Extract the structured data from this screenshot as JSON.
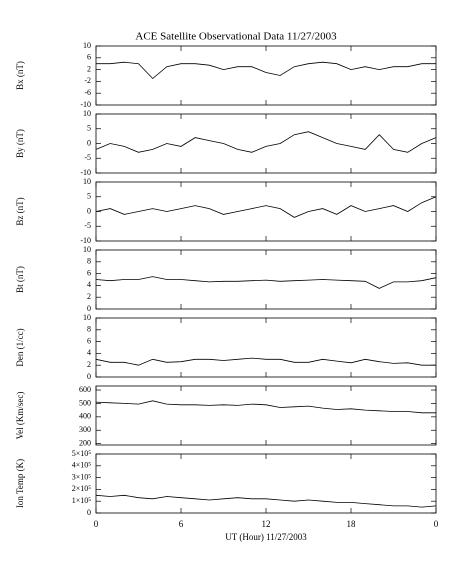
{
  "title": "ACE Satellite Observational Data   11/27/2003",
  "xlabel": "UT (Hour)  11/27/2003",
  "chart_data": [
    {
      "type": "line",
      "ylabel": "Bx (nT)",
      "color": "#000000",
      "x": [
        0,
        1,
        2,
        3,
        4,
        5,
        6,
        7,
        8,
        9,
        10,
        11,
        12,
        13,
        14,
        15,
        16,
        17,
        18,
        19,
        20,
        21,
        22,
        23,
        24
      ],
      "values": [
        4,
        4,
        4.5,
        4,
        -1,
        3,
        4,
        4,
        3.5,
        2,
        3,
        3,
        1,
        0,
        3,
        4,
        4.5,
        4,
        2,
        3,
        2,
        3,
        3,
        4,
        4
      ],
      "xlim": [
        0,
        24
      ],
      "xticks": [
        0,
        6,
        12,
        18,
        {
          "value": 24,
          "label": "0"
        }
      ],
      "ylim": [
        -10,
        10
      ],
      "yticks": [
        10,
        6,
        2,
        -2,
        -6,
        -10
      ]
    },
    {
      "type": "line",
      "ylabel": "By (nT)",
      "color": "#000000",
      "x": [
        0,
        1,
        2,
        3,
        4,
        5,
        6,
        7,
        8,
        9,
        10,
        11,
        12,
        13,
        14,
        15,
        16,
        17,
        18,
        19,
        20,
        21,
        22,
        23,
        24
      ],
      "values": [
        -2,
        0,
        -1,
        -3,
        -2,
        0,
        -1,
        2,
        1,
        0,
        -2,
        -3,
        -1,
        0,
        3,
        4,
        2,
        0,
        -1,
        -2,
        3,
        -2,
        -3,
        0,
        2
      ],
      "xlim": [
        0,
        24
      ],
      "xticks": [
        0,
        6,
        12,
        18,
        {
          "value": 24,
          "label": "0"
        }
      ],
      "ylim": [
        -10,
        10
      ],
      "yticks": [
        10,
        5,
        0,
        -5,
        -10
      ]
    },
    {
      "type": "line",
      "ylabel": "Bz (nT)",
      "color": "#000000",
      "x": [
        0,
        1,
        2,
        3,
        4,
        5,
        6,
        7,
        8,
        9,
        10,
        11,
        12,
        13,
        14,
        15,
        16,
        17,
        18,
        19,
        20,
        21,
        22,
        23,
        24
      ],
      "values": [
        0,
        1,
        -1,
        0,
        1,
        0,
        1,
        2,
        1,
        -1,
        0,
        1,
        2,
        1,
        -2,
        0,
        1,
        -1,
        2,
        0,
        1,
        2,
        0,
        3,
        5
      ],
      "xlim": [
        0,
        24
      ],
      "xticks": [
        0,
        6,
        12,
        18,
        {
          "value": 24,
          "label": "0"
        }
      ],
      "ylim": [
        -10,
        10
      ],
      "yticks": [
        10,
        5,
        0,
        -5,
        -10
      ]
    },
    {
      "type": "line",
      "ylabel": "Bt (nT)",
      "color": "#000000",
      "x": [
        0,
        1,
        2,
        3,
        4,
        5,
        6,
        7,
        8,
        9,
        10,
        11,
        12,
        13,
        14,
        15,
        16,
        17,
        18,
        19,
        20,
        21,
        22,
        23,
        24
      ],
      "values": [
        5,
        4.8,
        5,
        5,
        5.5,
        5,
        5,
        4.8,
        4.6,
        4.7,
        4.7,
        4.8,
        4.9,
        4.7,
        4.8,
        4.9,
        5,
        4.9,
        4.8,
        4.7,
        3.5,
        4.6,
        4.6,
        4.8,
        5.3
      ],
      "xlim": [
        0,
        24
      ],
      "xticks": [
        0,
        6,
        12,
        18,
        {
          "value": 24,
          "label": "0"
        }
      ],
      "ylim": [
        0,
        10
      ],
      "yticks": [
        10,
        8,
        6,
        4,
        2,
        0
      ]
    },
    {
      "type": "line",
      "ylabel": "Den (1/cc)",
      "color": "#000000",
      "x": [
        0,
        1,
        2,
        3,
        4,
        5,
        6,
        7,
        8,
        9,
        10,
        11,
        12,
        13,
        14,
        15,
        16,
        17,
        18,
        19,
        20,
        21,
        22,
        23,
        24
      ],
      "values": [
        3,
        2.5,
        2.5,
        2,
        3,
        2.5,
        2.6,
        3,
        3,
        2.8,
        3,
        3.2,
        3,
        3,
        2.5,
        2.5,
        3,
        2.7,
        2.4,
        3,
        2.6,
        2.3,
        2.4,
        2,
        2
      ],
      "xlim": [
        0,
        24
      ],
      "xticks": [
        0,
        6,
        12,
        18,
        {
          "value": 24,
          "label": "0"
        }
      ],
      "ylim": [
        0,
        10
      ],
      "yticks": [
        10,
        8,
        6,
        4,
        2,
        0
      ]
    },
    {
      "type": "line",
      "ylabel": "Vel (Km/sec)",
      "color": "#000000",
      "x": [
        0,
        1,
        2,
        3,
        4,
        5,
        6,
        7,
        8,
        9,
        10,
        11,
        12,
        13,
        14,
        15,
        16,
        17,
        18,
        19,
        20,
        21,
        22,
        23,
        24
      ],
      "values": [
        510,
        505,
        500,
        495,
        520,
        495,
        490,
        490,
        485,
        490,
        485,
        495,
        490,
        470,
        475,
        480,
        465,
        455,
        460,
        450,
        445,
        440,
        440,
        430,
        430
      ],
      "xlim": [
        0,
        24
      ],
      "xticks": [
        0,
        6,
        12,
        18,
        {
          "value": 24,
          "label": "0"
        }
      ],
      "ylim": [
        190,
        630
      ],
      "yticks": [
        600,
        500,
        400,
        300,
        200
      ]
    },
    {
      "type": "line",
      "ylabel": "Ion Temp (K)",
      "color": "#000000",
      "x": [
        0,
        1,
        2,
        3,
        4,
        5,
        6,
        7,
        8,
        9,
        10,
        11,
        12,
        13,
        14,
        15,
        16,
        17,
        18,
        19,
        20,
        21,
        22,
        23,
        24
      ],
      "values": [
        150000,
        140000,
        150000,
        130000,
        120000,
        140000,
        130000,
        120000,
        110000,
        120000,
        130000,
        120000,
        120000,
        110000,
        100000,
        110000,
        100000,
        90000,
        90000,
        80000,
        70000,
        60000,
        60000,
        50000,
        60000
      ],
      "xlim": [
        0,
        24
      ],
      "xticks": [
        0,
        6,
        12,
        18,
        {
          "value": 24,
          "label": "0"
        }
      ],
      "ylim": [
        0,
        500000
      ],
      "yticks": [
        {
          "value": 500000,
          "label": "5×10⁵"
        },
        {
          "value": 400000,
          "label": "4×10⁵"
        },
        {
          "value": 300000,
          "label": "3×10⁵"
        },
        {
          "value": 200000,
          "label": "2×10⁵"
        },
        {
          "value": 100000,
          "label": "1×10⁵"
        },
        0
      ]
    }
  ]
}
